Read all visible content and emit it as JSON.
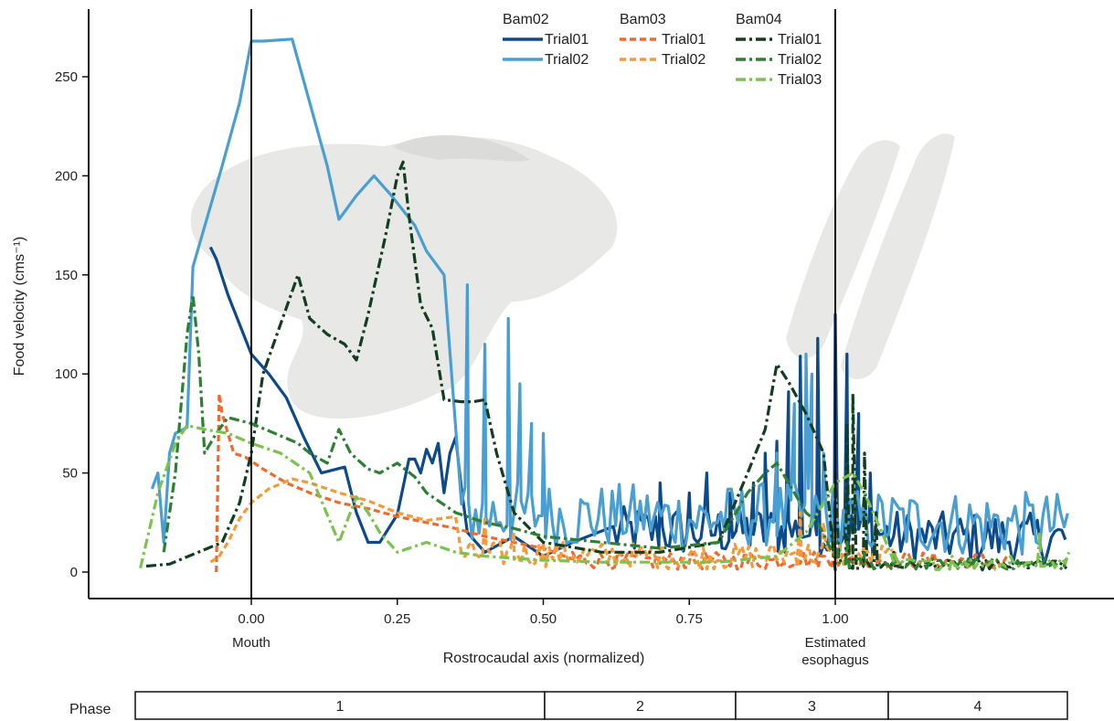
{
  "chart_data": {
    "type": "line",
    "ylabel": "Food velocity (cms⁻¹)",
    "xlabel": "Rostrocaudal axis (normalized)",
    "xlim": [
      -0.19,
      1.4
    ],
    "ylim": [
      -13,
      285
    ],
    "x_ticks": [
      {
        "value": 0.0,
        "label": "0.00"
      },
      {
        "value": 0.25,
        "label": "0.25"
      },
      {
        "value": 0.5,
        "label": "0.50"
      },
      {
        "value": 0.75,
        "label": "0.75"
      },
      {
        "value": 1.0,
        "label": "1.00"
      }
    ],
    "y_ticks": [
      {
        "value": 0,
        "label": "0"
      },
      {
        "value": 50,
        "label": "50"
      },
      {
        "value": 100,
        "label": "100"
      },
      {
        "value": 150,
        "label": "150"
      },
      {
        "value": 200,
        "label": "200"
      },
      {
        "value": 250,
        "label": "250"
      }
    ],
    "landmarks": [
      {
        "x": 0.0,
        "label": "Mouth"
      },
      {
        "x": 1.0,
        "label": "Estimated\nesophagus"
      }
    ],
    "legend_groups": [
      {
        "name": "Bam02",
        "entries": [
          "Trial01",
          "Trial02"
        ]
      },
      {
        "name": "Bam03",
        "entries": [
          "Trial01",
          "Trial02"
        ]
      },
      {
        "name": "Bam04",
        "entries": [
          "Trial01",
          "Trial02",
          "Trial03"
        ]
      }
    ],
    "legend_placement": "top",
    "series": [
      {
        "name": "Bam02 Trial01",
        "color": "#0d4a8a",
        "dash": "solid",
        "noise_range": [
          0.62,
          1.4
        ],
        "noise_amp": [
          2,
          28
        ],
        "points": [
          [
            -0.07,
            164
          ],
          [
            -0.06,
            158
          ],
          [
            -0.04,
            140
          ],
          [
            -0.02,
            125
          ],
          [
            0.0,
            110
          ],
          [
            0.03,
            100
          ],
          [
            0.06,
            88
          ],
          [
            0.09,
            68
          ],
          [
            0.12,
            50
          ],
          [
            0.16,
            53
          ],
          [
            0.18,
            30
          ],
          [
            0.2,
            15
          ],
          [
            0.22,
            15
          ],
          [
            0.25,
            29
          ],
          [
            0.27,
            57
          ],
          [
            0.28,
            57
          ],
          [
            0.29,
            50
          ],
          [
            0.3,
            62
          ],
          [
            0.31,
            55
          ],
          [
            0.32,
            65
          ],
          [
            0.33,
            40
          ],
          [
            0.34,
            60
          ],
          [
            0.35,
            68
          ],
          [
            0.36,
            42
          ],
          [
            0.37,
            20
          ],
          [
            0.4,
            10
          ],
          [
            0.45,
            18
          ],
          [
            0.5,
            8
          ],
          [
            0.55,
            15
          ],
          [
            0.62,
            20
          ],
          [
            0.7,
            45
          ],
          [
            0.75,
            40
          ],
          [
            0.78,
            50
          ],
          [
            0.82,
            40
          ],
          [
            0.86,
            45
          ],
          [
            0.88,
            60
          ],
          [
            0.9,
            66
          ],
          [
            0.92,
            91
          ],
          [
            0.94,
            109
          ],
          [
            0.97,
            118
          ],
          [
            1.0,
            130
          ],
          [
            1.02,
            110
          ],
          [
            1.04,
            80
          ],
          [
            1.06,
            50
          ],
          [
            1.08,
            20
          ],
          [
            1.12,
            15
          ],
          [
            1.2,
            12
          ],
          [
            1.3,
            10
          ],
          [
            1.4,
            8
          ]
        ]
      },
      {
        "name": "Bam02 Trial02",
        "color": "#4a9fd2",
        "dash": "solid",
        "noise_range": [
          0.36,
          1.4
        ],
        "noise_amp": [
          5,
          38
        ],
        "points": [
          [
            -0.17,
            42
          ],
          [
            -0.16,
            50
          ],
          [
            -0.15,
            15
          ],
          [
            -0.14,
            60
          ],
          [
            -0.13,
            70
          ],
          [
            -0.11,
            73
          ],
          [
            -0.1,
            154
          ],
          [
            -0.05,
            205
          ],
          [
            -0.02,
            237
          ],
          [
            0.0,
            268
          ],
          [
            0.02,
            268
          ],
          [
            0.07,
            269
          ],
          [
            0.1,
            237
          ],
          [
            0.13,
            205
          ],
          [
            0.15,
            178
          ],
          [
            0.18,
            190
          ],
          [
            0.21,
            200
          ],
          [
            0.24,
            190
          ],
          [
            0.28,
            175
          ],
          [
            0.3,
            162
          ],
          [
            0.33,
            150
          ],
          [
            0.37,
            145
          ],
          [
            0.4,
            115
          ],
          [
            0.44,
            128
          ],
          [
            0.46,
            95
          ],
          [
            0.48,
            75
          ],
          [
            0.5,
            70
          ],
          [
            0.52,
            35
          ],
          [
            0.55,
            30
          ],
          [
            0.6,
            32
          ],
          [
            0.65,
            35
          ],
          [
            0.7,
            30
          ],
          [
            0.75,
            25
          ],
          [
            0.8,
            28
          ],
          [
            0.85,
            35
          ],
          [
            0.9,
            60
          ],
          [
            0.93,
            85
          ],
          [
            0.95,
            110
          ],
          [
            0.96,
            100
          ],
          [
            0.98,
            60
          ],
          [
            1.0,
            25
          ],
          [
            1.05,
            20
          ],
          [
            1.15,
            18
          ],
          [
            1.25,
            15
          ],
          [
            1.35,
            12
          ],
          [
            1.4,
            10
          ]
        ]
      },
      {
        "name": "Bam03 Trial01",
        "color": "#ef6a2e",
        "dash": "dashed",
        "noise_range": [
          0.55,
          1.3
        ],
        "noise_amp": [
          0,
          9
        ],
        "points": [
          [
            -0.06,
            0
          ],
          [
            -0.055,
            90
          ],
          [
            -0.05,
            80
          ],
          [
            -0.04,
            70
          ],
          [
            -0.03,
            60
          ],
          [
            -0.01,
            58
          ],
          [
            0.02,
            52
          ],
          [
            0.06,
            45
          ],
          [
            0.1,
            40
          ],
          [
            0.15,
            35
          ],
          [
            0.2,
            32
          ],
          [
            0.25,
            28
          ],
          [
            0.3,
            25
          ],
          [
            0.35,
            22
          ],
          [
            0.4,
            18
          ],
          [
            0.45,
            15
          ],
          [
            0.5,
            12
          ],
          [
            0.55,
            10
          ],
          [
            0.6,
            8
          ],
          [
            0.7,
            6
          ],
          [
            0.8,
            5
          ],
          [
            0.9,
            5
          ],
          [
            0.94,
            25
          ],
          [
            1.0,
            20
          ],
          [
            1.05,
            10
          ],
          [
            1.2,
            5
          ],
          [
            1.3,
            4
          ]
        ]
      },
      {
        "name": "Bam03 Trial02",
        "color": "#f59a3a",
        "dash": "dashed",
        "noise_range": [
          0.36,
          1.1
        ],
        "noise_amp": [
          0,
          13
        ],
        "points": [
          [
            -0.07,
            5
          ],
          [
            -0.055,
            8
          ],
          [
            -0.04,
            15
          ],
          [
            -0.02,
            27
          ],
          [
            0.0,
            35
          ],
          [
            0.03,
            42
          ],
          [
            0.07,
            47
          ],
          [
            0.1,
            45
          ],
          [
            0.15,
            40
          ],
          [
            0.2,
            36
          ],
          [
            0.25,
            30
          ],
          [
            0.3,
            26
          ],
          [
            0.35,
            28
          ],
          [
            0.4,
            28
          ],
          [
            0.45,
            20
          ],
          [
            0.5,
            15
          ],
          [
            0.55,
            12
          ],
          [
            0.6,
            10
          ],
          [
            0.7,
            8
          ],
          [
            0.8,
            6
          ],
          [
            0.9,
            10
          ],
          [
            0.94,
            30
          ],
          [
            0.98,
            25
          ],
          [
            1.0,
            20
          ],
          [
            1.05,
            10
          ],
          [
            1.1,
            5
          ]
        ]
      },
      {
        "name": "Bam04 Trial01",
        "color": "#123d1e",
        "dash": "dashdot",
        "noise_range": [
          1.0,
          1.4
        ],
        "noise_amp": [
          0,
          5
        ],
        "points": [
          [
            -0.18,
            3
          ],
          [
            -0.14,
            4
          ],
          [
            -0.05,
            15
          ],
          [
            -0.02,
            35
          ],
          [
            0.0,
            60
          ],
          [
            0.02,
            100
          ],
          [
            0.05,
            125
          ],
          [
            0.08,
            150
          ],
          [
            0.1,
            128
          ],
          [
            0.13,
            120
          ],
          [
            0.16,
            115
          ],
          [
            0.18,
            107
          ],
          [
            0.2,
            130
          ],
          [
            0.23,
            170
          ],
          [
            0.25,
            200
          ],
          [
            0.26,
            207
          ],
          [
            0.27,
            180
          ],
          [
            0.29,
            135
          ],
          [
            0.31,
            123
          ],
          [
            0.33,
            87
          ],
          [
            0.36,
            86
          ],
          [
            0.38,
            86
          ],
          [
            0.4,
            87
          ],
          [
            0.42,
            60
          ],
          [
            0.45,
            30
          ],
          [
            0.5,
            15
          ],
          [
            0.6,
            10
          ],
          [
            0.7,
            10
          ],
          [
            0.8,
            15
          ],
          [
            0.85,
            50
          ],
          [
            0.88,
            72
          ],
          [
            0.9,
            105
          ],
          [
            0.92,
            96
          ],
          [
            0.95,
            80
          ],
          [
            0.98,
            60
          ],
          [
            1.0,
            50
          ],
          [
            1.02,
            75
          ],
          [
            1.03,
            90
          ],
          [
            1.05,
            60
          ],
          [
            1.07,
            30
          ],
          [
            1.1,
            10
          ],
          [
            1.2,
            5
          ],
          [
            1.3,
            5
          ],
          [
            1.4,
            5
          ]
        ]
      },
      {
        "name": "Bam04 Trial02",
        "color": "#2e7f33",
        "dash": "dashdot",
        "noise_range": [
          1.0,
          1.4
        ],
        "noise_amp": [
          0,
          6
        ],
        "points": [
          [
            -0.15,
            10
          ],
          [
            -0.13,
            50
          ],
          [
            -0.11,
            120
          ],
          [
            -0.1,
            140
          ],
          [
            -0.09,
            110
          ],
          [
            -0.08,
            60
          ],
          [
            -0.06,
            70
          ],
          [
            -0.04,
            78
          ],
          [
            0.0,
            75
          ],
          [
            0.04,
            70
          ],
          [
            0.08,
            65
          ],
          [
            0.1,
            60
          ],
          [
            0.13,
            55
          ],
          [
            0.15,
            72
          ],
          [
            0.17,
            60
          ],
          [
            0.2,
            52
          ],
          [
            0.22,
            50
          ],
          [
            0.25,
            55
          ],
          [
            0.28,
            48
          ],
          [
            0.3,
            40
          ],
          [
            0.35,
            30
          ],
          [
            0.4,
            25
          ],
          [
            0.45,
            22
          ],
          [
            0.5,
            18
          ],
          [
            0.6,
            15
          ],
          [
            0.7,
            12
          ],
          [
            0.8,
            15
          ],
          [
            0.85,
            40
          ],
          [
            0.88,
            50
          ],
          [
            0.9,
            55
          ],
          [
            0.93,
            40
          ],
          [
            0.95,
            30
          ],
          [
            0.97,
            25
          ],
          [
            1.0,
            20
          ],
          [
            1.02,
            15
          ],
          [
            1.05,
            10
          ],
          [
            1.1,
            8
          ],
          [
            1.2,
            6
          ],
          [
            1.3,
            5
          ],
          [
            1.4,
            5
          ]
        ]
      },
      {
        "name": "Bam04 Trial03",
        "color": "#7dc24f",
        "dash": "dashdot",
        "noise_range": [
          1.1,
          1.4
        ],
        "noise_amp": [
          0,
          6
        ],
        "points": [
          [
            -0.19,
            2
          ],
          [
            -0.16,
            40
          ],
          [
            -0.13,
            65
          ],
          [
            -0.11,
            74
          ],
          [
            -0.08,
            72
          ],
          [
            -0.04,
            70
          ],
          [
            0.0,
            65
          ],
          [
            0.05,
            60
          ],
          [
            0.1,
            50
          ],
          [
            0.15,
            15
          ],
          [
            0.18,
            38
          ],
          [
            0.2,
            30
          ],
          [
            0.22,
            20
          ],
          [
            0.25,
            10
          ],
          [
            0.3,
            15
          ],
          [
            0.35,
            10
          ],
          [
            0.4,
            8
          ],
          [
            0.5,
            6
          ],
          [
            0.6,
            5
          ],
          [
            0.7,
            5
          ],
          [
            0.8,
            5
          ],
          [
            0.9,
            8
          ],
          [
            0.95,
            20
          ],
          [
            1.0,
            45
          ],
          [
            1.03,
            50
          ],
          [
            1.05,
            40
          ],
          [
            1.08,
            20
          ],
          [
            1.1,
            10
          ],
          [
            1.2,
            8
          ],
          [
            1.3,
            8
          ],
          [
            1.35,
            20
          ],
          [
            1.4,
            10
          ]
        ]
      }
    ]
  },
  "phase_bar": {
    "label": "Phase",
    "segments": [
      {
        "label": "1",
        "start": -0.19,
        "end": 0.5
      },
      {
        "label": "2",
        "start": 0.5,
        "end": 0.83
      },
      {
        "label": "3",
        "start": 0.83,
        "end": 1.09
      },
      {
        "label": "4",
        "start": 1.09,
        "end": 1.4
      }
    ]
  }
}
